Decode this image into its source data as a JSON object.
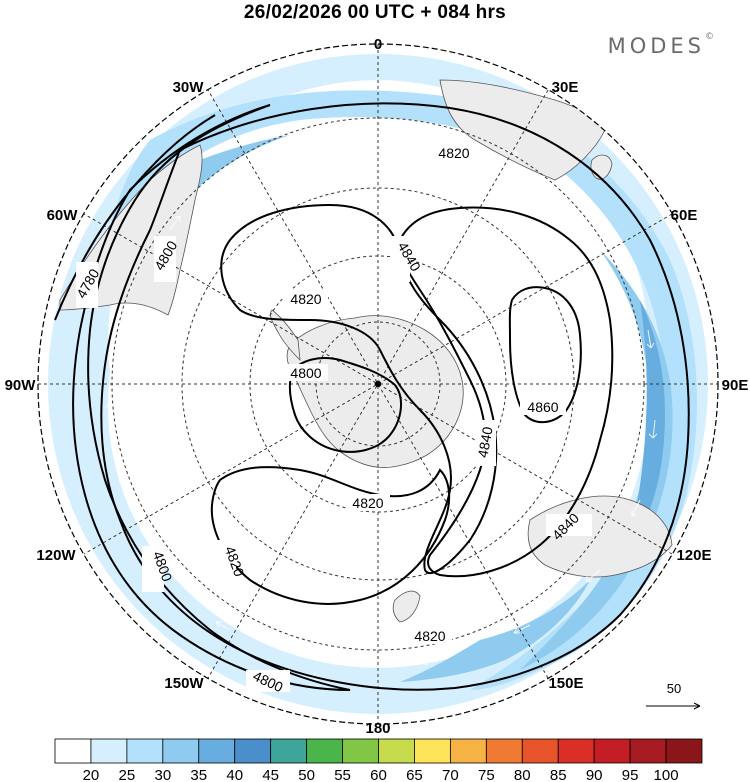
{
  "header": {
    "title": "26/02/2026  00 UTC  + 084 hrs",
    "brand": "MODES",
    "brand_mark": "©"
  },
  "map": {
    "projection": "south polar stereographic",
    "longitude_labels": [
      "0",
      "30E",
      "60E",
      "90E",
      "120E",
      "150E",
      "180",
      "150W",
      "120W",
      "90W",
      "60W",
      "30W"
    ],
    "contour_labels": [
      "4820",
      "4840",
      "4860",
      "4820",
      "4840",
      "4840",
      "4820",
      "4820",
      "4800",
      "4820",
      "4800",
      "4800",
      "4800",
      "4780",
      "4800",
      "4820"
    ],
    "reference_vector_label": "50",
    "colors": {
      "land": "#ececec",
      "coast": "#555555",
      "grid": "#333333",
      "contour": "#000000"
    }
  },
  "colorbar": {
    "ticks": [
      "20",
      "25",
      "30",
      "35",
      "40",
      "45",
      "50",
      "55",
      "60",
      "65",
      "70",
      "75",
      "80",
      "85",
      "90",
      "95",
      "100"
    ],
    "colors": [
      "#ffffff",
      "#d6efff",
      "#b3e0fb",
      "#8ecbef",
      "#67addf",
      "#4a8ecc",
      "#3ea59a",
      "#49b54b",
      "#82c646",
      "#c6dc4c",
      "#fde45a",
      "#f6b244",
      "#f07a32",
      "#e7542a",
      "#db2e26",
      "#c51d26",
      "#a61b22",
      "#8a1619"
    ]
  }
}
